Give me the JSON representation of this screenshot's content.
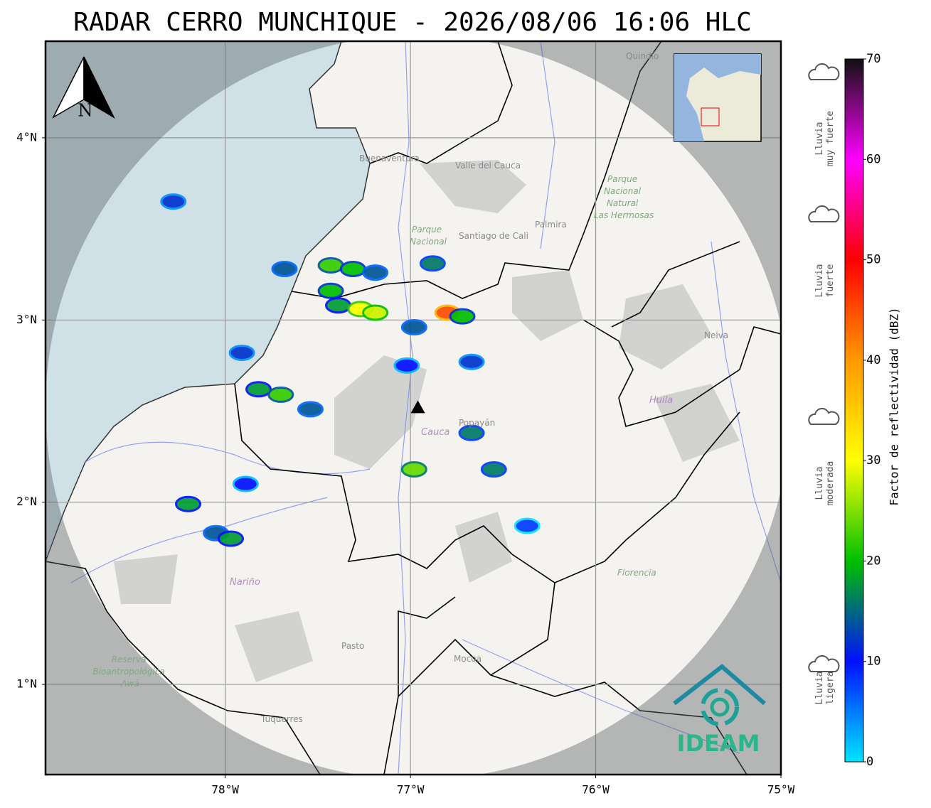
{
  "chart_data": {
    "type": "radar-map",
    "title": "RADAR CERRO MUNCHIQUE - 2026/08/06 16:06 HLC",
    "xlim": [
      -78.97,
      -75
    ],
    "ylim": [
      0.505,
      4.53
    ],
    "xticks": [
      {
        "value": -78,
        "label": "78°W"
      },
      {
        "value": -77,
        "label": "77°W"
      },
      {
        "value": -76,
        "label": "76°W"
      },
      {
        "value": -75,
        "label": "75°W"
      }
    ],
    "yticks": [
      {
        "value": 1,
        "label": "1°N"
      },
      {
        "value": 2,
        "label": "2°N"
      },
      {
        "value": 3,
        "label": "3°N"
      },
      {
        "value": 4,
        "label": "4°N"
      }
    ],
    "grid": true,
    "radar": {
      "lon": -76.96,
      "lat": 2.52,
      "range_deg": 2.01
    },
    "colorbar": {
      "label": "Factor de reflectividad (dBZ)",
      "ylim": [
        0,
        70
      ],
      "yticks": [
        0,
        10,
        20,
        30,
        40,
        50,
        60,
        70
      ],
      "colors": [
        "#00e5ff",
        "#0010ff",
        "#00c000",
        "#ffff00",
        "#ff9900",
        "#ff0000",
        "#ff00ff",
        "#111111"
      ]
    },
    "legend": [
      {
        "lines": [
          "Lluvia",
          "muy fuerte"
        ]
      },
      {
        "lines": [
          "Lluvia",
          "fuerte"
        ]
      },
      {
        "lines": [
          "Lluvia",
          "moderada"
        ]
      },
      {
        "lines": [
          "Lluvia",
          "ligera"
        ]
      }
    ],
    "echoes": [
      {
        "lon": -78.28,
        "lat": 3.65,
        "dbz": 12
      },
      {
        "lon": -77.68,
        "lat": 3.28,
        "dbz": 14
      },
      {
        "lon": -77.43,
        "lat": 3.3,
        "dbz": 22
      },
      {
        "lon": -77.31,
        "lat": 3.28,
        "dbz": 20
      },
      {
        "lon": -77.19,
        "lat": 3.26,
        "dbz": 14
      },
      {
        "lon": -77.43,
        "lat": 3.16,
        "dbz": 20
      },
      {
        "lon": -77.39,
        "lat": 3.08,
        "dbz": 18
      },
      {
        "lon": -77.27,
        "lat": 3.06,
        "dbz": 30
      },
      {
        "lon": -77.19,
        "lat": 3.04,
        "dbz": 28
      },
      {
        "lon": -76.88,
        "lat": 3.31,
        "dbz": 16
      },
      {
        "lon": -76.8,
        "lat": 3.04,
        "dbz": 45
      },
      {
        "lon": -76.72,
        "lat": 3.02,
        "dbz": 20
      },
      {
        "lon": -76.98,
        "lat": 2.96,
        "dbz": 14
      },
      {
        "lon": -77.91,
        "lat": 2.82,
        "dbz": 12
      },
      {
        "lon": -77.82,
        "lat": 2.62,
        "dbz": 18
      },
      {
        "lon": -77.7,
        "lat": 2.59,
        "dbz": 22
      },
      {
        "lon": -77.54,
        "lat": 2.51,
        "dbz": 14
      },
      {
        "lon": -76.67,
        "lat": 2.77,
        "dbz": 12
      },
      {
        "lon": -77.02,
        "lat": 2.75,
        "dbz": 10
      },
      {
        "lon": -76.67,
        "lat": 2.38,
        "dbz": 16
      },
      {
        "lon": -76.98,
        "lat": 2.18,
        "dbz": 24
      },
      {
        "lon": -76.55,
        "lat": 2.18,
        "dbz": 16
      },
      {
        "lon": -78.05,
        "lat": 1.83,
        "dbz": 14
      },
      {
        "lon": -77.97,
        "lat": 1.8,
        "dbz": 18
      },
      {
        "lon": -76.37,
        "lat": 1.87,
        "dbz": 8
      },
      {
        "lon": -77.89,
        "lat": 2.1,
        "dbz": 10
      },
      {
        "lon": -78.2,
        "lat": 1.99,
        "dbz": 18
      }
    ],
    "places": {
      "buenaventura": "Buenaventura",
      "valle": "Valle del Cauca",
      "cali": "Santiago de Cali",
      "palmira": "Palmira",
      "quindio": "Quindío",
      "popayan": "Popayán",
      "cauca": "Cauca",
      "huila": "Huila",
      "neiva": "Neiva",
      "narino": "Nariño",
      "pasto": "Pasto",
      "mocoa": "Mocoa",
      "florencia": "Florencia",
      "tuquerres": "Tuquerres",
      "hermosas": [
        "Parque",
        "Nacional",
        "Natural",
        "Las Hermosas"
      ],
      "farallones": [
        "Parque",
        "Nacional"
      ],
      "awa": [
        "Reserva",
        "Bioantropológica",
        "Awá"
      ]
    },
    "compass": "N",
    "logo": "IDEAM"
  }
}
